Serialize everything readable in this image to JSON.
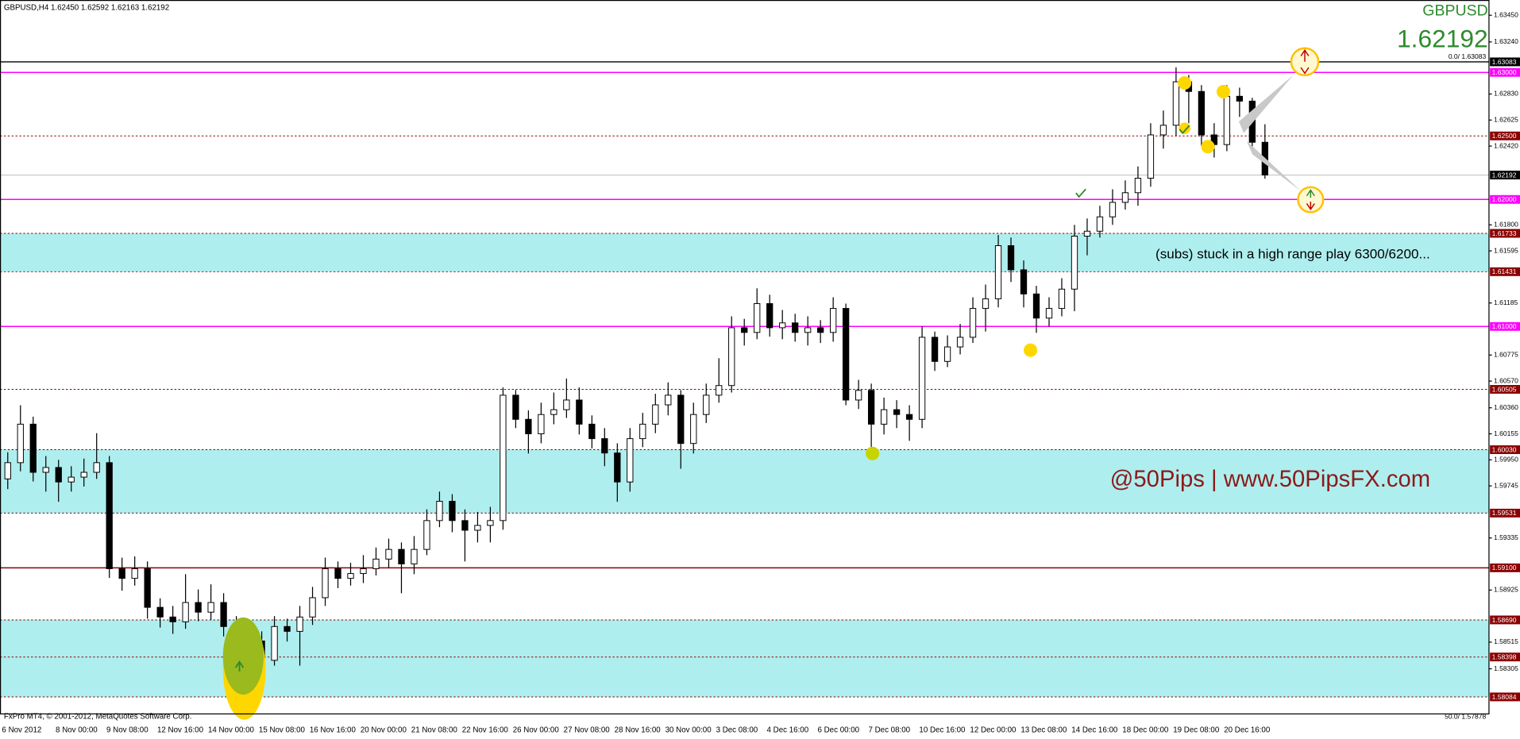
{
  "chart_data": {
    "type": "candlestick",
    "title": "GBPUSD,H4  1.62450 1.62592 1.62163 1.62192",
    "symbol": "GBPUSD",
    "price": {
      "value": 1.62192,
      "label": "1.62192"
    },
    "annotation_range": "(subs) stuck in a high range play 6300/6200...",
    "annotation_brand": "@50Pips | www.50PipsFX.com",
    "footer": "FxPro MT4, © 2001-2012, MetaQuotes Software Corp.",
    "fib_top": "0.0/ 1.63083",
    "fib_bottom": "50.0/ 1.57878",
    "colors": {
      "bull": "#ffffff",
      "bear": "#000000",
      "outline": "#000000",
      "zone": "#afeeee"
    },
    "ylim": [
      1.5795,
      1.6357
    ],
    "yticks": [
      {
        "value": 1.6345,
        "label": "1.63450"
      },
      {
        "value": 1.6324,
        "label": "1.63240"
      },
      {
        "value": 1.6283,
        "label": "1.62830"
      },
      1.62625,
      {
        "value": 1.6242,
        "label": "1.62420"
      },
      {
        "value": 1.618,
        "label": "1.61800"
      },
      1.61595,
      1.61185,
      1.60775,
      {
        "value": 1.6057,
        "label": "1.60570"
      },
      {
        "value": 1.6036,
        "label": "1.60360"
      },
      1.60155,
      {
        "value": 1.5995,
        "label": "1.59950"
      },
      1.59745,
      1.59335,
      1.58925,
      1.58515,
      1.58305
    ],
    "levels": [
      {
        "value": 1.63083,
        "color": "#000000",
        "style": "solid"
      },
      {
        "value": 1.63,
        "label": "1.63000",
        "color": "#ff00ff",
        "style": "solid"
      },
      {
        "value": 1.625,
        "label": "1.62500",
        "color": "#8b0000",
        "style": "dashed"
      },
      {
        "value": 1.62192,
        "color": "#000000",
        "style": "current"
      },
      {
        "value": 1.62,
        "label": "1.62000",
        "color": "#ff00ff",
        "style": "solid"
      },
      {
        "value": 1.61733,
        "color": "#8b0000",
        "style": "dashed"
      },
      {
        "value": 1.61431,
        "color": "#8b0000",
        "style": "dashed"
      },
      {
        "value": 1.61,
        "label": "1.61000",
        "color": "#ff00ff",
        "style": "solid"
      },
      {
        "value": 1.60505,
        "color": "#8b0000",
        "style": "dashed"
      },
      {
        "value": 1.6003,
        "label": "1.60030",
        "color": "#8b0000",
        "style": "dashed"
      },
      {
        "value": 1.59531,
        "color": "#8b0000",
        "style": "dashed"
      },
      {
        "value": 1.591,
        "label": "1.59100",
        "color": "#8b0000",
        "style": "solid"
      },
      {
        "value": 1.5869,
        "label": "1.58690",
        "color": "#8b0000",
        "style": "dashed"
      },
      {
        "value": 1.58398,
        "color": "#8b0000",
        "style": "dashed"
      },
      {
        "value": 1.58084,
        "color": "#8b0000",
        "style": "dashed"
      }
    ],
    "zones": [
      [
        1.61733,
        1.61431
      ],
      [
        1.6003,
        1.59531
      ],
      [
        1.5869,
        1.58084
      ]
    ],
    "categories": [
      "6 Nov 2012",
      null,
      null,
      null,
      "8 Nov 00:00",
      null,
      null,
      null,
      "9 Nov 08:00",
      null,
      null,
      null,
      "12 Nov 16:00",
      null,
      null,
      null,
      "14 Nov 00:00",
      null,
      null,
      null,
      "15 Nov 08:00",
      null,
      null,
      null,
      "16 Nov 16:00",
      null,
      null,
      null,
      "20 Nov 00:00",
      null,
      null,
      null,
      "21 Nov 08:00",
      null,
      null,
      null,
      "22 Nov 16:00",
      null,
      null,
      null,
      "26 Nov 00:00",
      null,
      null,
      null,
      "27 Nov 08:00",
      null,
      null,
      null,
      "28 Nov 16:00",
      null,
      null,
      null,
      "30 Nov 00:00",
      null,
      null,
      null,
      "3 Dec 08:00",
      null,
      null,
      null,
      "4 Dec 16:00",
      null,
      null,
      null,
      "6 Dec 00:00",
      null,
      null,
      null,
      "7 Dec 08:00",
      null,
      null,
      null,
      "10 Dec 16:00",
      null,
      null,
      null,
      "12 Dec 00:00",
      null,
      null,
      null,
      "13 Dec 08:00",
      null,
      null,
      null,
      "14 Dec 16:00",
      null,
      null,
      null,
      "18 Dec 00:00",
      null,
      null,
      null,
      "19 Dec 08:00",
      null,
      null,
      null,
      "20 Dec 16:00",
      null,
      null,
      null
    ],
    "ohlc": [
      [
        1.598,
        1.6001,
        1.5972,
        1.59928
      ],
      [
        1.59928,
        1.6038,
        1.5986,
        1.60231
      ],
      [
        1.60231,
        1.6029,
        1.5978,
        1.59852
      ],
      [
        1.59852,
        1.5998,
        1.597,
        1.5989
      ],
      [
        1.5989,
        1.5995,
        1.5962,
        1.59776
      ],
      [
        1.59776,
        1.599,
        1.597,
        1.59814
      ],
      [
        1.59814,
        1.5996,
        1.5974,
        1.59852
      ],
      [
        1.59852,
        1.6016,
        1.598,
        1.59928
      ],
      [
        1.59928,
        1.5998,
        1.5902,
        1.59093
      ],
      [
        1.59093,
        1.5918,
        1.5892,
        1.59017
      ],
      [
        1.59017,
        1.5919,
        1.5896,
        1.59093
      ],
      [
        1.59093,
        1.5915,
        1.587,
        1.58789
      ],
      [
        1.58789,
        1.5886,
        1.5863,
        1.58713
      ],
      [
        1.58713,
        1.588,
        1.5858,
        1.58675
      ],
      [
        1.58675,
        1.5905,
        1.5862,
        1.58827
      ],
      [
        1.58827,
        1.5893,
        1.5868,
        1.58751
      ],
      [
        1.58751,
        1.5897,
        1.5869,
        1.58827
      ],
      [
        1.58827,
        1.589,
        1.5856,
        1.58638
      ],
      [
        1.58638,
        1.5872,
        1.58334,
        1.5841
      ],
      [
        1.5841,
        1.5862,
        1.5835,
        1.58524
      ],
      [
        1.58524,
        1.586,
        1.583,
        1.58372
      ],
      [
        1.58372,
        1.5872,
        1.5833,
        1.58638
      ],
      [
        1.58638,
        1.587,
        1.5852,
        1.586
      ],
      [
        1.586,
        1.588,
        1.5833,
        1.58713
      ],
      [
        1.58713,
        1.5895,
        1.5865,
        1.58865
      ],
      [
        1.58865,
        1.5918,
        1.588,
        1.59093
      ],
      [
        1.59093,
        1.5915,
        1.5894,
        1.59017
      ],
      [
        1.59017,
        1.5914,
        1.5896,
        1.59055
      ],
      [
        1.59055,
        1.592,
        1.5898,
        1.59093
      ],
      [
        1.59093,
        1.5926,
        1.5904,
        1.59169
      ],
      [
        1.59169,
        1.5933,
        1.591,
        1.59245
      ],
      [
        1.59245,
        1.593,
        1.589,
        1.59131
      ],
      [
        1.59131,
        1.5935,
        1.5905,
        1.59245
      ],
      [
        1.59245,
        1.5956,
        1.592,
        1.59472
      ],
      [
        1.59472,
        1.597,
        1.5942,
        1.59624
      ],
      [
        1.59624,
        1.5968,
        1.5938,
        1.59472
      ],
      [
        1.59472,
        1.5956,
        1.5915,
        1.59396
      ],
      [
        1.59396,
        1.5954,
        1.593,
        1.59434
      ],
      [
        1.59434,
        1.5958,
        1.593,
        1.59472
      ],
      [
        1.59472,
        1.6052,
        1.594,
        1.60459
      ],
      [
        1.60459,
        1.605,
        1.602,
        1.60269
      ],
      [
        1.60269,
        1.6034,
        1.6,
        1.60155
      ],
      [
        1.60155,
        1.604,
        1.6008,
        1.60307
      ],
      [
        1.60307,
        1.6048,
        1.6023,
        1.60345
      ],
      [
        1.60345,
        1.6059,
        1.6028,
        1.60421
      ],
      [
        1.60421,
        1.6052,
        1.6015,
        1.60231
      ],
      [
        1.60231,
        1.603,
        1.6004,
        1.60117
      ],
      [
        1.60117,
        1.602,
        1.599,
        1.60004
      ],
      [
        1.60004,
        1.6008,
        1.5962,
        1.59776
      ],
      [
        1.59776,
        1.602,
        1.597,
        1.60117
      ],
      [
        1.60117,
        1.6032,
        1.6005,
        1.60231
      ],
      [
        1.60231,
        1.6047,
        1.6016,
        1.60383
      ],
      [
        1.60383,
        1.6056,
        1.603,
        1.60459
      ],
      [
        1.60459,
        1.605,
        1.5988,
        1.60079
      ],
      [
        1.60079,
        1.604,
        1.6,
        1.60307
      ],
      [
        1.60307,
        1.6055,
        1.6024,
        1.60459
      ],
      [
        1.60459,
        1.6075,
        1.604,
        1.60535
      ],
      [
        1.60535,
        1.6108,
        1.6048,
        1.6099
      ],
      [
        1.6099,
        1.6106,
        1.6085,
        1.60953
      ],
      [
        1.60953,
        1.613,
        1.609,
        1.6118
      ],
      [
        1.6118,
        1.6125,
        1.6092,
        1.6099
      ],
      [
        1.6099,
        1.6113,
        1.609,
        1.61028
      ],
      [
        1.61028,
        1.611,
        1.6088,
        1.60953
      ],
      [
        1.60953,
        1.6108,
        1.6085,
        1.6099
      ],
      [
        1.6099,
        1.6105,
        1.6087,
        1.60953
      ],
      [
        1.60953,
        1.6123,
        1.6088,
        1.61142
      ],
      [
        1.61142,
        1.6118,
        1.6038,
        1.60421
      ],
      [
        1.60421,
        1.6058,
        1.6035,
        1.60497
      ],
      [
        1.60497,
        1.6055,
        1.5998,
        1.60231
      ],
      [
        1.60231,
        1.6044,
        1.6015,
        1.60345
      ],
      [
        1.60345,
        1.6042,
        1.602,
        1.60307
      ],
      [
        1.60307,
        1.6038,
        1.601,
        1.60269
      ],
      [
        1.60269,
        1.61,
        1.602,
        1.60915
      ],
      [
        1.60915,
        1.6096,
        1.6065,
        1.60725
      ],
      [
        1.60725,
        1.6093,
        1.6068,
        1.60839
      ],
      [
        1.60839,
        1.6102,
        1.6078,
        1.60915
      ],
      [
        1.60915,
        1.6123,
        1.6087,
        1.61142
      ],
      [
        1.61142,
        1.6133,
        1.6096,
        1.61218
      ],
      [
        1.61218,
        1.6172,
        1.6115,
        1.61636
      ],
      [
        1.61636,
        1.617,
        1.6135,
        1.61446
      ],
      [
        1.61446,
        1.6152,
        1.6115,
        1.61256
      ],
      [
        1.61256,
        1.6132,
        1.6095,
        1.61066
      ],
      [
        1.61066,
        1.6123,
        1.61,
        1.61142
      ],
      [
        1.61142,
        1.6138,
        1.6108,
        1.61294
      ],
      [
        1.61294,
        1.618,
        1.6112,
        1.61711
      ],
      [
        1.61711,
        1.6185,
        1.6156,
        1.6175
      ],
      [
        1.6175,
        1.6195,
        1.617,
        1.61863
      ],
      [
        1.61863,
        1.6208,
        1.618,
        1.61977
      ],
      [
        1.61977,
        1.6215,
        1.6192,
        1.62053
      ],
      [
        1.62053,
        1.6226,
        1.6195,
        1.62167
      ],
      [
        1.62167,
        1.626,
        1.621,
        1.62508
      ],
      [
        1.62508,
        1.627,
        1.624,
        1.62584
      ],
      [
        1.62584,
        1.6304,
        1.625,
        1.62926
      ],
      [
        1.62926,
        1.6298,
        1.626,
        1.6285
      ],
      [
        1.6285,
        1.629,
        1.6242,
        1.62508
      ],
      [
        1.62508,
        1.626,
        1.6233,
        1.62432
      ],
      [
        1.62432,
        1.629,
        1.6238,
        1.62812
      ],
      [
        1.62812,
        1.6288,
        1.6265,
        1.62774
      ],
      [
        1.62774,
        1.628,
        1.6238,
        1.6245
      ],
      [
        1.6245,
        1.62592,
        1.62163,
        1.62192
      ]
    ]
  }
}
